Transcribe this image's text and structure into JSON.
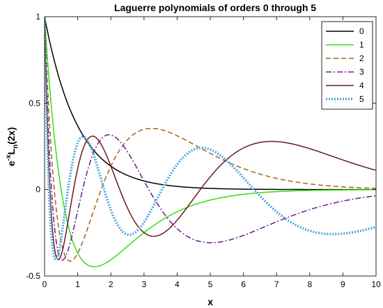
{
  "chart_data": {
    "type": "line",
    "title": "Laguerre polynomials of orders 0 through 5",
    "xlabel": "x",
    "ylabel_main": "e",
    "ylabel_sup": "-x",
    "ylabel_L": "L",
    "ylabel_sub": "n",
    "ylabel_arg": "(2x)",
    "xlim": [
      0,
      10
    ],
    "ylim": [
      -0.5,
      1
    ],
    "xticks": [
      0,
      1,
      2,
      3,
      4,
      5,
      6,
      7,
      8,
      9,
      10
    ],
    "xtick_labels": [
      "0",
      "1",
      "2",
      "3",
      "4",
      "5",
      "6",
      "7",
      "8",
      "9",
      "10"
    ],
    "yticks": [
      -0.5,
      0,
      0.5,
      1
    ],
    "ytick_labels": [
      "-0.5",
      "0",
      "0.5",
      "1"
    ],
    "grid": false,
    "legend_position": "top-right",
    "sample_step": 0.02,
    "series": [
      {
        "name": "0",
        "order": 0,
        "color": "#000000",
        "dash": "",
        "width": 1.5
      },
      {
        "name": "1",
        "order": 1,
        "color": "#33dd11",
        "dash": "",
        "width": 1.5
      },
      {
        "name": "2",
        "order": 2,
        "color": "#a0641a",
        "dash": "7 4",
        "width": 1.5
      },
      {
        "name": "3",
        "order": 3,
        "color": "#6a1a8a",
        "dash": "8 3 2 3",
        "width": 1.5
      },
      {
        "name": "4",
        "order": 4,
        "color": "#6a1a1a",
        "dash": "",
        "width": 1.5
      },
      {
        "name": "5",
        "order": 5,
        "color": "#55aadd",
        "dash": "2 2",
        "width": 3.5
      }
    ]
  }
}
